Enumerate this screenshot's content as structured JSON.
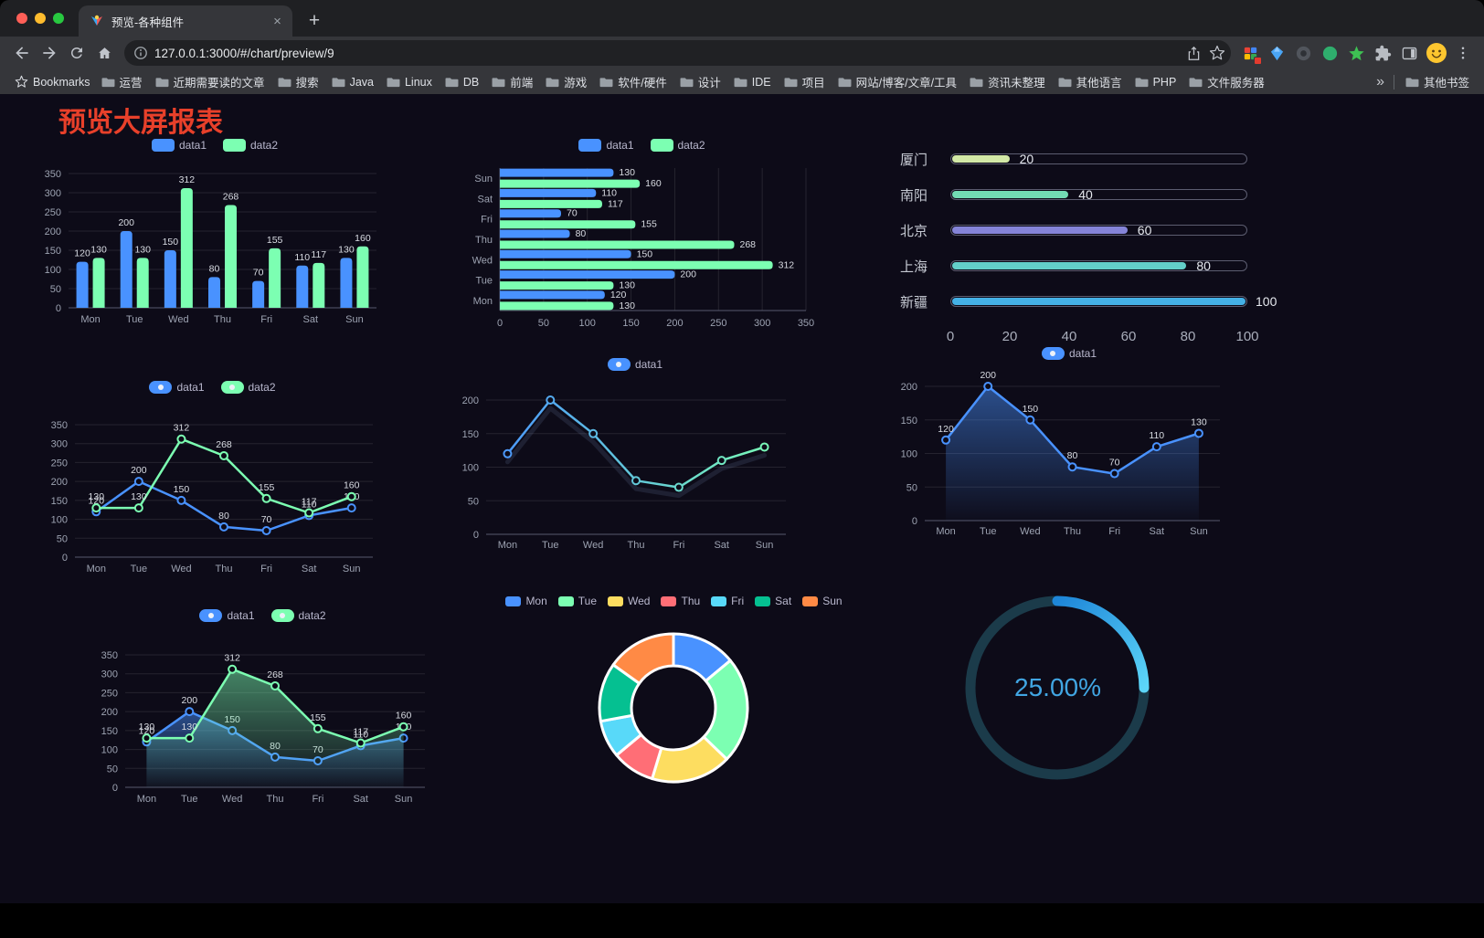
{
  "browser": {
    "tab": {
      "title": "预览-各种组件"
    },
    "url": "127.0.0.1:3000/#/chart/preview/9",
    "bookmarks_label": "Bookmarks",
    "bookmarks": [
      "运营",
      "近期需要读的文章",
      "搜索",
      "Java",
      "Linux",
      "DB",
      "前端",
      "游戏",
      "软件/硬件",
      "设计",
      "IDE",
      "项目",
      "网站/博客/文章/工具",
      "资讯未整理",
      "其他语言",
      "PHP",
      "文件服务器"
    ],
    "bookmarks_overflow": "»",
    "other_bookmarks": "其他书签"
  },
  "page": {
    "title": "预览大屏报表",
    "title_color": "#e8402a"
  },
  "colors": {
    "page_background": "#0d0b18",
    "chrome_frame": "#1f2023",
    "chrome_toolbar": "#35363a",
    "urlbar_background": "#202124",
    "traffic_lights": [
      "#ff5f57",
      "#febc2e",
      "#28c840"
    ]
  },
  "icons": {
    "tab_favicon": "colorful-logo",
    "nav": [
      "back-arrow",
      "forward-arrow",
      "reload",
      "home"
    ],
    "urlbar": [
      "info-circle",
      "share-upload",
      "bookmark-star"
    ],
    "toolbar_right": [
      "extension-grid-badge",
      "extension-gem",
      "extension-dark-circle",
      "extension-green-circle",
      "extension-green-star",
      "extensions-puzzle",
      "sidebar-toggle",
      "profile-avatar",
      "kebab-menu"
    ],
    "bookmark_folder": "folder"
  },
  "chart_data": [
    {
      "id": "bar-chart",
      "type": "bar",
      "categories": [
        "Mon",
        "Tue",
        "Wed",
        "Thu",
        "Fri",
        "Sat",
        "Sun"
      ],
      "series": [
        {
          "name": "data1",
          "color": "#4992ff",
          "values": [
            120,
            200,
            150,
            80,
            70,
            110,
            130
          ]
        },
        {
          "name": "data2",
          "color": "#7cffb2",
          "values": [
            130,
            130,
            312,
            268,
            155,
            117,
            160
          ]
        }
      ],
      "ylim": [
        0,
        350
      ],
      "yticks": [
        0,
        50,
        100,
        150,
        200,
        250,
        300,
        350
      ],
      "value_labels": true,
      "legend_position": "top",
      "grid": true
    },
    {
      "id": "hbar-chart",
      "type": "bar-horizontal",
      "categories": [
        "Mon",
        "Tue",
        "Wed",
        "Thu",
        "Fri",
        "Sat",
        "Sun"
      ],
      "series": [
        {
          "name": "data1",
          "color": "#4992ff",
          "values": [
            120,
            200,
            150,
            80,
            70,
            110,
            130
          ]
        },
        {
          "name": "data2",
          "color": "#7cffb2",
          "values": [
            130,
            130,
            312,
            268,
            155,
            117,
            160
          ]
        }
      ],
      "xlim": [
        0,
        350
      ],
      "xticks": [
        0,
        50,
        100,
        150,
        200,
        250,
        300,
        350
      ],
      "value_labels": true,
      "legend_position": "top",
      "grid": true
    },
    {
      "id": "progress-chart",
      "type": "bar-progress",
      "items": [
        {
          "label": "厦门",
          "value": 20,
          "color": "#d2e8a6"
        },
        {
          "label": "南阳",
          "value": 40,
          "color": "#72dcb4"
        },
        {
          "label": "北京",
          "value": 60,
          "color": "#8584d8"
        },
        {
          "label": "上海",
          "value": 80,
          "color": "#63cfc9"
        },
        {
          "label": "新疆",
          "value": 100,
          "color": "#44b1e6"
        }
      ],
      "xlim": [
        0,
        100
      ],
      "xticks": [
        0,
        20,
        40,
        60,
        80,
        100
      ]
    },
    {
      "id": "line-chart-two",
      "type": "line",
      "categories": [
        "Mon",
        "Tue",
        "Wed",
        "Thu",
        "Fri",
        "Sat",
        "Sun"
      ],
      "series": [
        {
          "name": "data1",
          "color": "#4992ff",
          "values": [
            120,
            200,
            150,
            80,
            70,
            110,
            130
          ]
        },
        {
          "name": "data2",
          "color": "#7cffb2",
          "values": [
            130,
            130,
            312,
            268,
            155,
            117,
            160
          ]
        }
      ],
      "ylim": [
        0,
        350
      ],
      "yticks": [
        0,
        50,
        100,
        150,
        200,
        250,
        300,
        350
      ],
      "value_labels": true,
      "legend_position": "top",
      "grid": true
    },
    {
      "id": "line-chart-gradient",
      "type": "line",
      "categories": [
        "Mon",
        "Tue",
        "Wed",
        "Thu",
        "Fri",
        "Sat",
        "Sun"
      ],
      "series": [
        {
          "name": "data1",
          "color": "#4992ff",
          "gradient": [
            "#4992ff",
            "#7cffb2"
          ],
          "shadow": true,
          "values": [
            120,
            200,
            150,
            80,
            70,
            110,
            130
          ]
        }
      ],
      "ylim": [
        0,
        200
      ],
      "yticks": [
        0,
        50,
        100,
        150,
        200
      ],
      "value_labels": false,
      "legend_position": "top",
      "grid": true
    },
    {
      "id": "area-chart-single",
      "type": "area",
      "categories": [
        "Mon",
        "Tue",
        "Wed",
        "Thu",
        "Fri",
        "Sat",
        "Sun"
      ],
      "series": [
        {
          "name": "data1",
          "color": "#4992ff",
          "area": true,
          "values": [
            120,
            200,
            150,
            80,
            70,
            110,
            130
          ]
        }
      ],
      "ylim": [
        0,
        200
      ],
      "yticks": [
        0,
        50,
        100,
        150,
        200
      ],
      "value_labels": true,
      "legend_position": "top",
      "grid": true
    },
    {
      "id": "area-chart-two",
      "type": "area",
      "categories": [
        "Mon",
        "Tue",
        "Wed",
        "Thu",
        "Fri",
        "Sat",
        "Sun"
      ],
      "series": [
        {
          "name": "data1",
          "color": "#4992ff",
          "area": true,
          "values": [
            120,
            200,
            150,
            80,
            70,
            110,
            130
          ]
        },
        {
          "name": "data2",
          "color": "#7cffb2",
          "area": true,
          "values": [
            130,
            130,
            312,
            268,
            155,
            117,
            160
          ]
        }
      ],
      "ylim": [
        0,
        350
      ],
      "yticks": [
        0,
        50,
        100,
        150,
        200,
        250,
        300,
        350
      ],
      "value_labels": true,
      "legend_position": "top",
      "grid": true
    },
    {
      "id": "pie-chart",
      "type": "pie",
      "donut": true,
      "categories": [
        "Mon",
        "Tue",
        "Wed",
        "Thu",
        "Fri",
        "Sat",
        "Sun"
      ],
      "values": [
        120,
        200,
        150,
        80,
        70,
        110,
        130
      ],
      "colors": [
        "#4992ff",
        "#7cffb2",
        "#fddd60",
        "#ff6e76",
        "#58d9f9",
        "#05c091",
        "#ff8a45"
      ],
      "legend_position": "top"
    },
    {
      "id": "gauge-chart",
      "type": "gauge",
      "value": 25,
      "label": "25.00%",
      "arc_colors": [
        "#1e86d8",
        "#5cd5f8"
      ],
      "track_color": "#1b3b4a",
      "text_color": "#41a6e3"
    }
  ]
}
